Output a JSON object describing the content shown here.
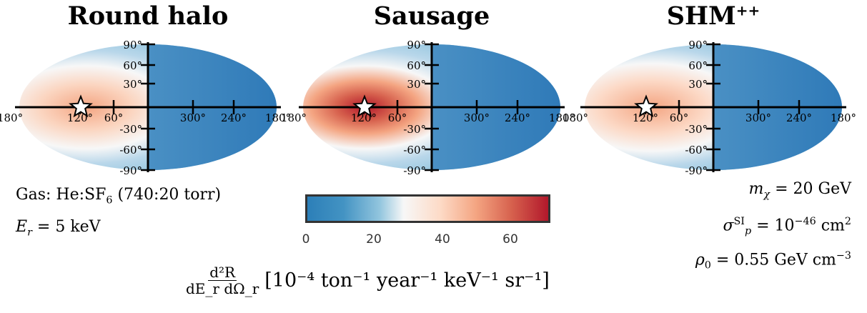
{
  "panels": [
    {
      "title": "Round halo",
      "title_sup": ""
    },
    {
      "title": "Sausage",
      "title_sup": ""
    },
    {
      "title": "SHM",
      "title_sup": "++"
    }
  ],
  "lat_ticks": [
    "90°",
    "60°",
    "30°",
    "-30°",
    "-60°",
    "-90°"
  ],
  "lon_ticks": [
    "180°",
    "120°",
    "60°",
    "300°",
    "240°",
    "180°"
  ],
  "left_info": {
    "gas_label": "Gas: He:SF",
    "gas_sub": "6",
    "gas_ratio": "(740:20 torr)",
    "energy_sym": "E",
    "energy_sub": "r",
    "energy_val": "= 5 keV"
  },
  "right_info": {
    "mass": "m",
    "mass_sub": "χ",
    "mass_val": "= 20 GeV",
    "sigma": "σ",
    "sigma_sup": "SI",
    "sigma_sub": "p",
    "sigma_val": "= 10",
    "sigma_exp": "−46",
    "sigma_unit": "cm",
    "sigma_unit_exp": "2",
    "rho": "ρ",
    "rho_sub": "0",
    "rho_val": "= 0.55 GeV cm",
    "rho_exp": "−3"
  },
  "colorbar": {
    "ticks": [
      "0",
      "20",
      "40",
      "60"
    ],
    "label_num": "d²R",
    "label_den": "dE_r dΩ_r",
    "label_units": "[10⁻⁴ ton⁻¹ year⁻¹ keV⁻¹ sr⁻¹]"
  },
  "chart_data": {
    "type": "heatmap",
    "projection": "mollweide",
    "colormap": "RdBu_r",
    "colorbar_range": [
      0,
      72
    ],
    "panels": [
      {
        "name": "Round halo",
        "peak_lon": 90,
        "peak_lat": 0,
        "peak_value": 35,
        "min_value": 0
      },
      {
        "name": "Sausage",
        "peak_lon": 90,
        "peak_lat": 0,
        "peak_value": 72,
        "min_value": 0
      },
      {
        "name": "SHM++",
        "peak_lon": 90,
        "peak_lat": 0,
        "peak_value": 38,
        "min_value": 0
      }
    ],
    "marker": {
      "symbol": "star",
      "lon": 90,
      "lat": 0
    }
  }
}
